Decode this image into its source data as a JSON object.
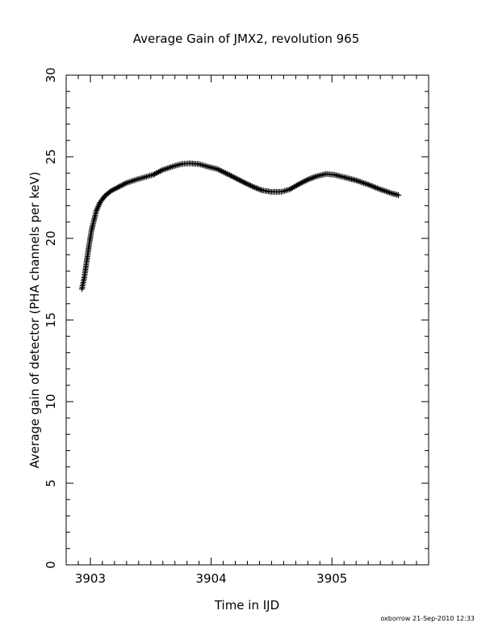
{
  "chart_data": {
    "type": "scatter",
    "marker": "+",
    "title": "Average Gain of JMX2, revolution 965",
    "xlabel": "Time in IJD",
    "ylabel": "Average gain of detector (PHA channels per keV)",
    "xlim": [
      3902.8,
      3905.8
    ],
    "ylim": [
      0,
      30
    ],
    "xticks": [
      3903,
      3904,
      3905
    ],
    "yticks": [
      0,
      5,
      10,
      15,
      20,
      25,
      30
    ],
    "grid": false,
    "series": [
      {
        "x": [
          3902.93,
          3902.95,
          3902.97,
          3902.99,
          3903.01,
          3903.03,
          3903.05,
          3903.08,
          3903.12,
          3903.17,
          3903.22,
          3903.3,
          3903.38,
          3903.45,
          3903.52,
          3903.6,
          3903.68,
          3903.75,
          3903.82,
          3903.9,
          3903.97,
          3904.05,
          3904.12,
          3904.2,
          3904.28,
          3904.35,
          3904.42,
          3904.5,
          3904.58,
          3904.65,
          3904.72,
          3904.8,
          3904.87,
          3904.95,
          3905.02,
          3905.1,
          3905.2,
          3905.3,
          3905.4,
          3905.5,
          3905.55
        ],
        "y": [
          16.9,
          17.6,
          18.6,
          19.6,
          20.5,
          21.1,
          21.7,
          22.2,
          22.6,
          22.9,
          23.1,
          23.4,
          23.6,
          23.75,
          23.9,
          24.2,
          24.4,
          24.55,
          24.6,
          24.55,
          24.4,
          24.25,
          24.0,
          23.7,
          23.4,
          23.15,
          22.95,
          22.85,
          22.85,
          23.0,
          23.3,
          23.6,
          23.8,
          23.95,
          23.9,
          23.75,
          23.55,
          23.3,
          23.0,
          22.75,
          22.65
        ]
      }
    ]
  },
  "footer": {
    "credit": "oxborrow 21-Sep-2010 12:33"
  }
}
